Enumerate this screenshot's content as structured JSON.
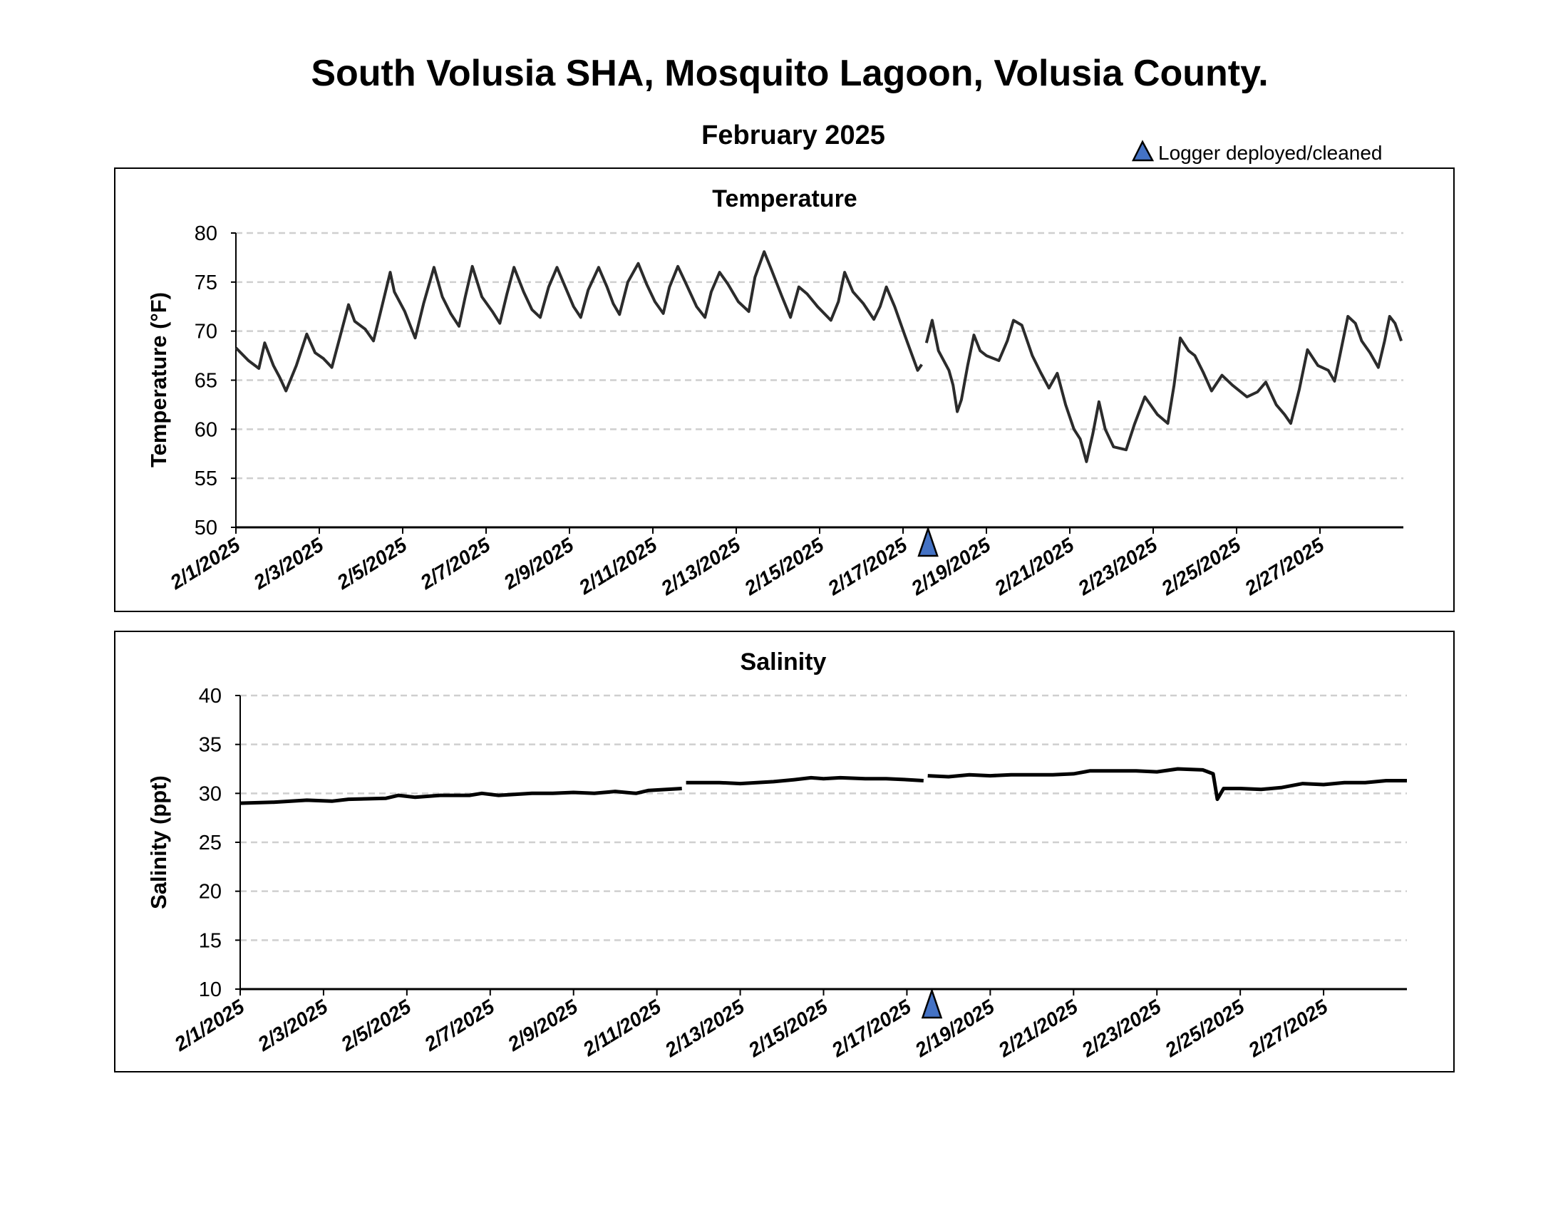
{
  "header": {
    "title": "South Volusia SHA, Mosquito Lagoon, Volusia County.",
    "subtitle": "February 2025",
    "legend_label": "Logger deployed/cleaned",
    "marker_color": "#4472C4"
  },
  "chart_data": [
    {
      "type": "line",
      "title": "Temperature",
      "xlabel": "",
      "ylabel": "Temperature (°F)",
      "ylim": [
        50,
        80
      ],
      "yticks": [
        50,
        55,
        60,
        65,
        70,
        75,
        80
      ],
      "x_units": "days since 2/1/2025 00:00",
      "xlim": [
        0,
        28
      ],
      "xtick_labels": [
        "2/1/2025",
        "2/3/2025",
        "2/5/2025",
        "2/7/2025",
        "2/9/2025",
        "2/11/2025",
        "2/13/2025",
        "2/15/2025",
        "2/17/2025",
        "2/19/2025",
        "2/21/2025",
        "2/23/2025",
        "2/25/2025",
        "2/27/2025"
      ],
      "grid": "horizontal dashed",
      "line_color": "#2b2b2b",
      "logger_events_day": [
        16.6
      ],
      "segments": [
        [
          [
            0,
            68.3
          ],
          [
            0.3,
            67
          ],
          [
            0.55,
            66.2
          ],
          [
            0.69,
            68.8
          ],
          [
            0.9,
            66.5
          ],
          [
            1.05,
            65.3
          ],
          [
            1.2,
            63.9
          ],
          [
            1.45,
            66.5
          ],
          [
            1.7,
            69.7
          ],
          [
            1.9,
            67.8
          ],
          [
            2.1,
            67.2
          ],
          [
            2.3,
            66.3
          ],
          [
            2.5,
            69.5
          ],
          [
            2.7,
            72.7
          ],
          [
            2.85,
            71
          ],
          [
            3.1,
            70.2
          ],
          [
            3.3,
            69
          ],
          [
            3.5,
            72.5
          ],
          [
            3.7,
            76
          ],
          [
            3.8,
            74
          ],
          [
            4.05,
            72
          ],
          [
            4.3,
            69.3
          ],
          [
            4.5,
            72.8
          ],
          [
            4.75,
            76.5
          ],
          [
            4.95,
            73.5
          ],
          [
            5.15,
            71.8
          ],
          [
            5.35,
            70.5
          ],
          [
            5.5,
            73.5
          ],
          [
            5.67,
            76.6
          ],
          [
            5.9,
            73.5
          ],
          [
            6.15,
            72
          ],
          [
            6.33,
            70.8
          ],
          [
            6.5,
            73.8
          ],
          [
            6.67,
            76.5
          ],
          [
            6.9,
            74
          ],
          [
            7.1,
            72.2
          ],
          [
            7.3,
            71.4
          ],
          [
            7.5,
            74.5
          ],
          [
            7.7,
            76.5
          ],
          [
            7.9,
            74.5
          ],
          [
            8.1,
            72.5
          ],
          [
            8.27,
            71.4
          ],
          [
            8.45,
            74.2
          ],
          [
            8.7,
            76.5
          ],
          [
            8.9,
            74.5
          ],
          [
            9.05,
            72.8
          ],
          [
            9.2,
            71.7
          ],
          [
            9.4,
            75
          ],
          [
            9.65,
            76.9
          ],
          [
            9.85,
            74.8
          ],
          [
            10.05,
            73
          ],
          [
            10.25,
            71.8
          ],
          [
            10.4,
            74.5
          ],
          [
            10.6,
            76.6
          ],
          [
            10.8,
            74.8
          ],
          [
            11.05,
            72.5
          ],
          [
            11.25,
            71.4
          ],
          [
            11.4,
            74
          ],
          [
            11.6,
            76
          ],
          [
            11.8,
            74.8
          ],
          [
            12.05,
            73
          ],
          [
            12.3,
            72
          ],
          [
            12.45,
            75.5
          ],
          [
            12.67,
            78.1
          ],
          [
            12.85,
            76.2
          ],
          [
            13.1,
            73.5
          ],
          [
            13.3,
            71.4
          ],
          [
            13.5,
            74.5
          ],
          [
            13.7,
            73.8
          ],
          [
            13.95,
            72.5
          ],
          [
            14.27,
            71.1
          ],
          [
            14.45,
            73
          ],
          [
            14.6,
            76
          ],
          [
            14.8,
            74
          ],
          [
            15.05,
            72.8
          ],
          [
            15.3,
            71.2
          ],
          [
            15.45,
            72.5
          ],
          [
            15.6,
            74.5
          ],
          [
            15.8,
            72.5
          ],
          [
            16.05,
            69.5
          ],
          [
            16.35,
            66
          ],
          [
            16.45,
            66.6
          ]
        ],
        [
          [
            16.56,
            68.8
          ],
          [
            16.7,
            71.1
          ],
          [
            16.85,
            68
          ],
          [
            17.1,
            66
          ],
          [
            17.2,
            64.5
          ],
          [
            17.3,
            61.8
          ],
          [
            17.4,
            63
          ],
          [
            17.55,
            66.5
          ],
          [
            17.7,
            69.6
          ],
          [
            17.85,
            68
          ],
          [
            18.0,
            67.5
          ],
          [
            18.3,
            67
          ],
          [
            18.5,
            69
          ],
          [
            18.65,
            71.1
          ],
          [
            18.85,
            70.6
          ],
          [
            19.1,
            67.5
          ],
          [
            19.3,
            65.8
          ],
          [
            19.5,
            64.2
          ],
          [
            19.7,
            65.7
          ],
          [
            19.9,
            62.5
          ],
          [
            20.1,
            60
          ],
          [
            20.25,
            59
          ],
          [
            20.4,
            56.7
          ],
          [
            20.55,
            59.5
          ],
          [
            20.7,
            62.8
          ],
          [
            20.85,
            60
          ],
          [
            21.05,
            58.2
          ],
          [
            21.35,
            57.9
          ],
          [
            21.55,
            60.5
          ],
          [
            21.8,
            63.3
          ],
          [
            22.1,
            61.5
          ],
          [
            22.35,
            60.6
          ],
          [
            22.5,
            64.5
          ],
          [
            22.65,
            69.3
          ],
          [
            22.85,
            68
          ],
          [
            23.0,
            67.5
          ],
          [
            23.2,
            65.8
          ],
          [
            23.4,
            63.9
          ],
          [
            23.65,
            65.5
          ],
          [
            23.9,
            64.5
          ],
          [
            24.25,
            63.3
          ],
          [
            24.5,
            63.8
          ],
          [
            24.7,
            64.8
          ],
          [
            24.95,
            62.5
          ],
          [
            25.15,
            61.5
          ],
          [
            25.3,
            60.6
          ],
          [
            25.5,
            64
          ],
          [
            25.7,
            68.1
          ],
          [
            25.95,
            66.5
          ],
          [
            26.2,
            66
          ],
          [
            26.35,
            64.9
          ],
          [
            26.5,
            68
          ],
          [
            26.67,
            71.5
          ],
          [
            26.85,
            70.8
          ],
          [
            27.0,
            69
          ],
          [
            27.2,
            67.8
          ],
          [
            27.4,
            66.3
          ],
          [
            27.55,
            69
          ],
          [
            27.67,
            71.5
          ],
          [
            27.8,
            70.8
          ],
          [
            27.95,
            69
          ]
        ]
      ]
    },
    {
      "type": "line",
      "title": "Salinity",
      "xlabel": "",
      "ylabel": "Salinity (ppt)",
      "ylim": [
        10,
        40
      ],
      "yticks": [
        10,
        15,
        20,
        25,
        30,
        35,
        40
      ],
      "x_units": "days since 2/1/2025 00:00",
      "xlim": [
        0,
        28
      ],
      "xtick_labels": [
        "2/1/2025",
        "2/3/2025",
        "2/5/2025",
        "2/7/2025",
        "2/9/2025",
        "2/11/2025",
        "2/13/2025",
        "2/15/2025",
        "2/17/2025",
        "2/19/2025",
        "2/21/2025",
        "2/23/2025",
        "2/25/2025",
        "2/27/2025"
      ],
      "grid": "horizontal dashed",
      "line_color": "#000000",
      "logger_events_day": [
        16.6
      ],
      "segments": [
        [
          [
            0,
            29.0
          ],
          [
            0.8,
            29.1
          ],
          [
            1.6,
            29.3
          ],
          [
            2.2,
            29.2
          ],
          [
            2.6,
            29.4
          ],
          [
            3.5,
            29.5
          ],
          [
            3.8,
            29.8
          ],
          [
            4.2,
            29.6
          ],
          [
            4.8,
            29.8
          ],
          [
            5.5,
            29.8
          ],
          [
            5.8,
            30.0
          ],
          [
            6.2,
            29.8
          ],
          [
            7.0,
            30.0
          ],
          [
            7.5,
            30.0
          ],
          [
            8.0,
            30.1
          ],
          [
            8.5,
            30.0
          ],
          [
            9.0,
            30.2
          ],
          [
            9.5,
            30.0
          ],
          [
            9.8,
            30.3
          ],
          [
            10.6,
            30.5
          ]
        ],
        [
          [
            10.7,
            31.1
          ],
          [
            11.5,
            31.1
          ],
          [
            12.0,
            31.0
          ],
          [
            12.8,
            31.2
          ],
          [
            13.3,
            31.4
          ],
          [
            13.7,
            31.6
          ],
          [
            14.0,
            31.5
          ],
          [
            14.4,
            31.6
          ],
          [
            15.0,
            31.5
          ],
          [
            15.5,
            31.5
          ],
          [
            16.0,
            31.4
          ],
          [
            16.4,
            31.3
          ]
        ],
        [
          [
            16.5,
            31.8
          ],
          [
            17.0,
            31.7
          ],
          [
            17.5,
            31.9
          ],
          [
            18.0,
            31.8
          ],
          [
            18.5,
            31.9
          ],
          [
            19.0,
            31.9
          ],
          [
            19.5,
            31.9
          ],
          [
            20.0,
            32.0
          ],
          [
            20.4,
            32.3
          ],
          [
            21.0,
            32.3
          ],
          [
            21.5,
            32.3
          ],
          [
            22.0,
            32.2
          ],
          [
            22.5,
            32.5
          ],
          [
            23.1,
            32.4
          ],
          [
            23.35,
            32.0
          ],
          [
            23.45,
            29.4
          ],
          [
            23.6,
            30.5
          ],
          [
            24.0,
            30.5
          ],
          [
            24.5,
            30.4
          ],
          [
            25.0,
            30.6
          ],
          [
            25.5,
            31.0
          ],
          [
            26.0,
            30.9
          ],
          [
            26.5,
            31.1
          ],
          [
            27.0,
            31.1
          ],
          [
            27.5,
            31.3
          ],
          [
            28.0,
            31.3
          ]
        ]
      ]
    }
  ]
}
